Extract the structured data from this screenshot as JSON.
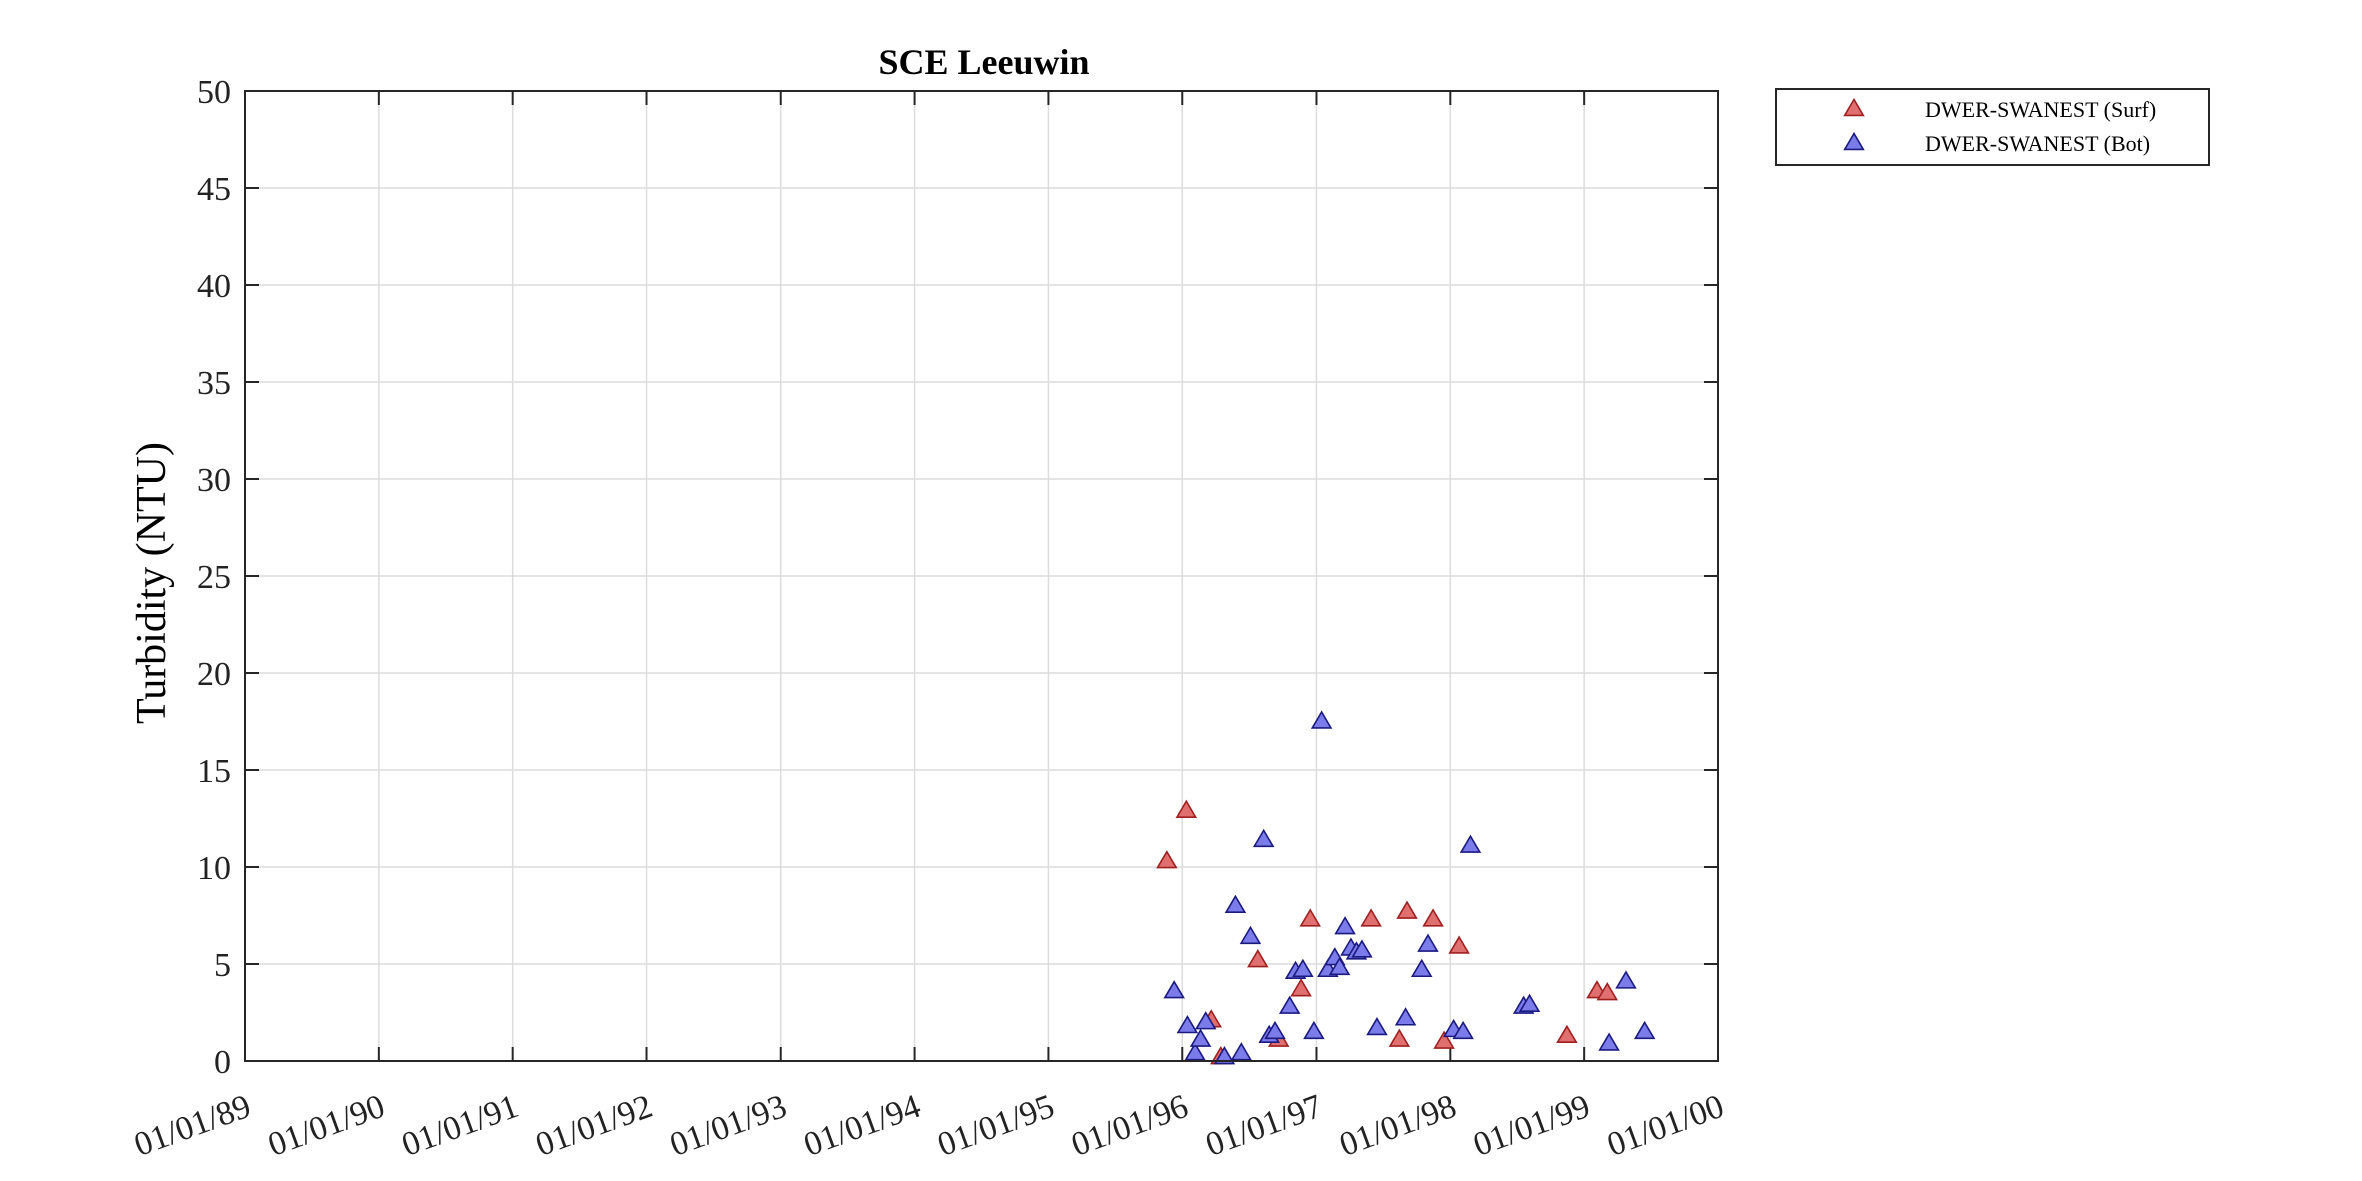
{
  "chart_data": {
    "type": "scatter",
    "title": "SCE Leeuwin",
    "ylabel": "Turbidity (NTU)",
    "xlabel": "",
    "xlim": [
      "1989-01-01",
      "2000-01-01"
    ],
    "ylim": [
      0,
      50
    ],
    "x_ticks": [
      "1989-01-01",
      "1990-01-01",
      "1991-01-01",
      "1992-01-01",
      "1993-01-01",
      "1994-01-01",
      "1995-01-01",
      "1996-01-01",
      "1997-01-01",
      "1998-01-01",
      "1999-01-01",
      "2000-01-01"
    ],
    "x_tick_labels": [
      "01/01/89",
      "01/01/90",
      "01/01/91",
      "01/01/92",
      "01/01/93",
      "01/01/94",
      "01/01/95",
      "01/01/96",
      "01/01/97",
      "01/01/98",
      "01/01/99",
      "01/01/00"
    ],
    "y_ticks": [
      0,
      5,
      10,
      15,
      20,
      25,
      30,
      35,
      40,
      45,
      50
    ],
    "y_tick_labels": [
      "0",
      "5",
      "10",
      "15",
      "20",
      "25",
      "30",
      "35",
      "40",
      "45",
      "50"
    ],
    "grid": true,
    "legend_position": "outside-top-right",
    "series": [
      {
        "name": "DWER-SWANEST (Surf)",
        "color": "#e07070",
        "edge_color": "#a02020",
        "marker": "triangle",
        "points": [
          {
            "x": "1995-11-20",
            "y": 10.3
          },
          {
            "x": "1996-01-12",
            "y": 12.9
          },
          {
            "x": "1996-03-20",
            "y": 2.1
          },
          {
            "x": "1996-04-15",
            "y": 0.2
          },
          {
            "x": "1996-07-25",
            "y": 5.2
          },
          {
            "x": "1996-09-20",
            "y": 1.1
          },
          {
            "x": "1996-11-20",
            "y": 3.7
          },
          {
            "x": "1996-12-15",
            "y": 7.3
          },
          {
            "x": "1997-05-30",
            "y": 7.3
          },
          {
            "x": "1997-08-15",
            "y": 1.1
          },
          {
            "x": "1997-09-05",
            "y": 7.7
          },
          {
            "x": "1997-11-15",
            "y": 7.3
          },
          {
            "x": "1997-12-15",
            "y": 1.0
          },
          {
            "x": "1998-01-25",
            "y": 5.9
          },
          {
            "x": "1998-11-15",
            "y": 1.3
          },
          {
            "x": "1999-02-05",
            "y": 3.6
          },
          {
            "x": "1999-03-05",
            "y": 3.5
          }
        ]
      },
      {
        "name": "DWER-SWANEST (Bot)",
        "color": "#7b7bea",
        "edge_color": "#1a1a80",
        "marker": "triangle",
        "points": [
          {
            "x": "1995-12-10",
            "y": 3.6
          },
          {
            "x": "1996-01-15",
            "y": 1.8
          },
          {
            "x": "1996-02-05",
            "y": 0.4
          },
          {
            "x": "1996-02-20",
            "y": 1.1
          },
          {
            "x": "1996-03-05",
            "y": 2.0
          },
          {
            "x": "1996-04-25",
            "y": 0.2
          },
          {
            "x": "1996-05-25",
            "y": 8.0
          },
          {
            "x": "1996-06-10",
            "y": 0.4
          },
          {
            "x": "1996-07-05",
            "y": 6.4
          },
          {
            "x": "1996-08-10",
            "y": 11.4
          },
          {
            "x": "1996-08-25",
            "y": 1.3
          },
          {
            "x": "1996-09-10",
            "y": 1.5
          },
          {
            "x": "1996-10-20",
            "y": 2.8
          },
          {
            "x": "1996-11-05",
            "y": 4.6
          },
          {
            "x": "1996-11-25",
            "y": 4.7
          },
          {
            "x": "1996-12-25",
            "y": 1.5
          },
          {
            "x": "1997-01-15",
            "y": 17.5
          },
          {
            "x": "1997-02-01",
            "y": 4.7
          },
          {
            "x": "1997-02-20",
            "y": 5.3
          },
          {
            "x": "1997-03-05",
            "y": 4.8
          },
          {
            "x": "1997-03-20",
            "y": 6.9
          },
          {
            "x": "1997-04-05",
            "y": 5.8
          },
          {
            "x": "1997-04-20",
            "y": 5.6
          },
          {
            "x": "1997-05-05",
            "y": 5.7
          },
          {
            "x": "1997-06-15",
            "y": 1.7
          },
          {
            "x": "1997-09-01",
            "y": 2.2
          },
          {
            "x": "1997-10-15",
            "y": 4.7
          },
          {
            "x": "1997-11-01",
            "y": 6.0
          },
          {
            "x": "1998-01-10",
            "y": 1.6
          },
          {
            "x": "1998-02-05",
            "y": 1.5
          },
          {
            "x": "1998-02-25",
            "y": 11.1
          },
          {
            "x": "1998-07-20",
            "y": 2.8
          },
          {
            "x": "1998-08-05",
            "y": 2.9
          },
          {
            "x": "1999-03-10",
            "y": 0.9
          },
          {
            "x": "1999-04-25",
            "y": 4.1
          },
          {
            "x": "1999-06-15",
            "y": 1.5
          }
        ]
      }
    ]
  }
}
